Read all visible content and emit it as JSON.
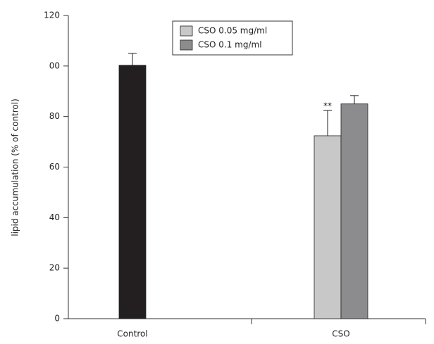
{
  "chart_data": {
    "type": "bar",
    "ylabel": "lipid accumulation (% of control)",
    "categories": [
      "Control",
      "CSO"
    ],
    "series": [
      {
        "color": "#231f20",
        "values": [
          100.3,
          null
        ],
        "errors": [
          4.7,
          null
        ]
      },
      {
        "name": "CSO 0.05 mg/ml",
        "color": "#c8c8c8",
        "values": [
          null,
          72.4
        ],
        "errors": [
          null,
          10
        ]
      },
      {
        "name": "CSO 0.1 mg/ml",
        "color": "#8c8c8e",
        "values": [
          null,
          85
        ],
        "errors": [
          null,
          3.3
        ]
      }
    ],
    "annotation": "**",
    "ylim": [
      0,
      120
    ],
    "yticks": [
      0,
      20,
      40,
      60,
      80,
      {
        "value": 100,
        "label": "00"
      },
      120
    ],
    "grid": false
  }
}
